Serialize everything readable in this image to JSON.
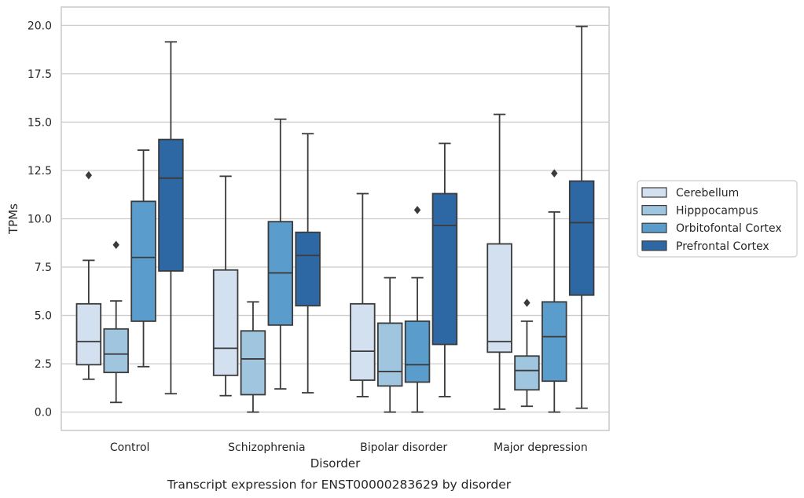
{
  "chart_data": {
    "type": "box",
    "title": "",
    "caption": "Transcript expression for ENST00000283629 by disorder",
    "xlabel": "Disorder",
    "ylabel": "TPMs",
    "ylim": [
      -0.95,
      20.95
    ],
    "yticks": [
      "0.0",
      "2.5",
      "5.0",
      "7.5",
      "10.0",
      "12.5",
      "15.0",
      "17.5",
      "20.0"
    ],
    "grid": "horizontal",
    "legend_position": "right",
    "categories": [
      "Control",
      "Schizophrenia",
      "Bipolar disorder",
      "Major depression"
    ],
    "series": [
      {
        "name": "Cerebellum",
        "color": "#d2e0f0",
        "boxes": [
          {
            "whislo": 1.7,
            "q1": 2.45,
            "med": 3.65,
            "q3": 5.6,
            "whishi": 7.85,
            "fliers": [
              12.25
            ]
          },
          {
            "whislo": 0.85,
            "q1": 1.9,
            "med": 3.3,
            "q3": 7.35,
            "whishi": 12.2,
            "fliers": []
          },
          {
            "whislo": 0.8,
            "q1": 1.65,
            "med": 3.15,
            "q3": 5.6,
            "whishi": 11.3,
            "fliers": []
          },
          {
            "whislo": 0.15,
            "q1": 3.1,
            "med": 3.65,
            "q3": 8.7,
            "whishi": 15.4,
            "fliers": []
          }
        ]
      },
      {
        "name": "Hipppocampus",
        "color": "#9fc5df",
        "boxes": [
          {
            "whislo": 0.5,
            "q1": 2.05,
            "med": 3.0,
            "q3": 4.3,
            "whishi": 5.75,
            "fliers": [
              8.65
            ]
          },
          {
            "whislo": 0.0,
            "q1": 0.9,
            "med": 2.75,
            "q3": 4.2,
            "whishi": 5.7,
            "fliers": []
          },
          {
            "whislo": 0.0,
            "q1": 1.35,
            "med": 2.1,
            "q3": 4.6,
            "whishi": 6.95,
            "fliers": []
          },
          {
            "whislo": 0.3,
            "q1": 1.15,
            "med": 2.15,
            "q3": 2.9,
            "whishi": 4.7,
            "fliers": [
              5.65
            ]
          }
        ]
      },
      {
        "name": "Orbitofontal Cortex",
        "color": "#5a9dcd",
        "boxes": [
          {
            "whislo": 2.35,
            "q1": 4.7,
            "med": 8.0,
            "q3": 10.9,
            "whishi": 13.55,
            "fliers": []
          },
          {
            "whislo": 1.2,
            "q1": 4.5,
            "med": 7.2,
            "q3": 9.85,
            "whishi": 15.15,
            "fliers": []
          },
          {
            "whislo": 0.0,
            "q1": 1.55,
            "med": 2.45,
            "q3": 4.7,
            "whishi": 6.95,
            "fliers": [
              10.45
            ]
          },
          {
            "whislo": 0.0,
            "q1": 1.6,
            "med": 3.9,
            "q3": 5.7,
            "whishi": 10.35,
            "fliers": [
              12.35
            ]
          }
        ]
      },
      {
        "name": "Prefrontal Cortex",
        "color": "#2e68a4",
        "boxes": [
          {
            "whislo": 0.95,
            "q1": 7.3,
            "med": 12.1,
            "q3": 14.1,
            "whishi": 19.15,
            "fliers": []
          },
          {
            "whislo": 1.0,
            "q1": 5.5,
            "med": 8.1,
            "q3": 9.3,
            "whishi": 14.4,
            "fliers": []
          },
          {
            "whislo": 0.8,
            "q1": 3.5,
            "med": 9.65,
            "q3": 11.3,
            "whishi": 13.9,
            "fliers": []
          },
          {
            "whislo": 0.2,
            "q1": 6.05,
            "med": 9.8,
            "q3": 11.95,
            "whishi": 19.95,
            "fliers": []
          }
        ]
      }
    ]
  }
}
